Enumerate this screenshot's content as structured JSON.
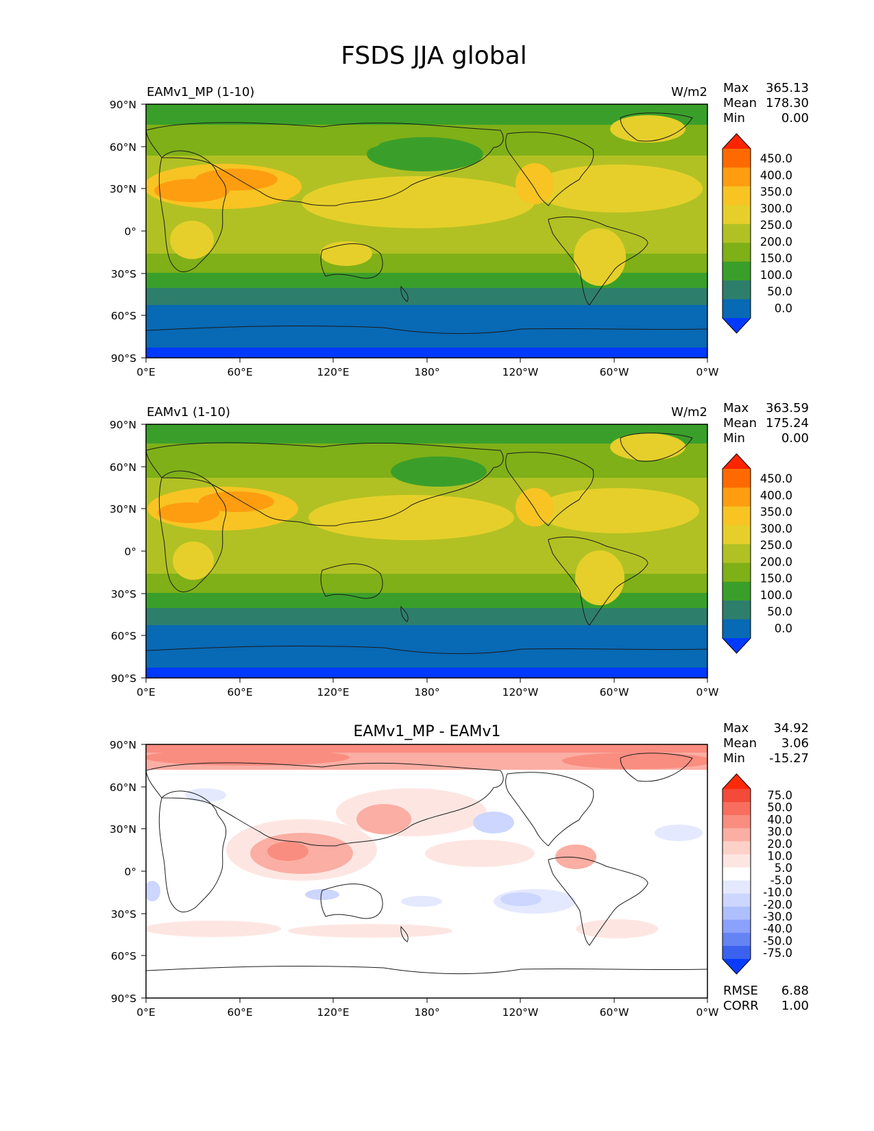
{
  "figure": {
    "title": "FSDS JJA global"
  },
  "axes": {
    "lat_ticks": [
      "90°N",
      "60°N",
      "30°N",
      "0°",
      "30°S",
      "60°S",
      "90°S"
    ],
    "lon_ticks": [
      "0°E",
      "60°E",
      "120°E",
      "180°",
      "120°W",
      "60°W",
      "0°W"
    ]
  },
  "panels": [
    {
      "id": "test",
      "title_left": "EAMv1_MP (1-10)",
      "title_right": "W/m2",
      "stats": [
        {
          "label": "Max",
          "value": "365.13"
        },
        {
          "label": "Mean",
          "value": "178.30"
        },
        {
          "label": "Min",
          "value": "0.00"
        }
      ],
      "colorbar": {
        "ticks": [
          "450.0",
          "400.0",
          "350.0",
          "300.0",
          "250.0",
          "200.0",
          "150.0",
          "100.0",
          "50.0",
          "0.0"
        ],
        "colors": [
          "#ff2400",
          "#ff6a00",
          "#ff9d10",
          "#f7c423",
          "#e6cf2a",
          "#b1c123",
          "#7fb018",
          "#3a9f2a",
          "#2e7e6c",
          "#0869b4",
          "#0039ff"
        ]
      }
    },
    {
      "id": "reference",
      "title_left": "EAMv1 (1-10)",
      "title_right": "W/m2",
      "stats": [
        {
          "label": "Max",
          "value": "363.59"
        },
        {
          "label": "Mean",
          "value": "175.24"
        },
        {
          "label": "Min",
          "value": "0.00"
        }
      ],
      "colorbar": {
        "ticks": [
          "450.0",
          "400.0",
          "350.0",
          "300.0",
          "250.0",
          "200.0",
          "150.0",
          "100.0",
          "50.0",
          "0.0"
        ],
        "colors": [
          "#ff2400",
          "#ff6a00",
          "#ff9d10",
          "#f7c423",
          "#e6cf2a",
          "#b1c123",
          "#7fb018",
          "#3a9f2a",
          "#2e7e6c",
          "#0869b4",
          "#0039ff"
        ]
      }
    },
    {
      "id": "difference",
      "title_center": "EAMv1_MP - EAMv1",
      "stats": [
        {
          "label": "Max",
          "value": "34.92"
        },
        {
          "label": "Mean",
          "value": "3.06"
        },
        {
          "label": "Min",
          "value": "-15.27"
        }
      ],
      "extra_stats": [
        {
          "label": "RMSE",
          "value": "6.88"
        },
        {
          "label": "CORR",
          "value": "1.00"
        }
      ],
      "colorbar": {
        "ticks": [
          "75.0",
          "50.0",
          "40.0",
          "30.0",
          "20.0",
          "10.0",
          "5.0",
          "-5.0",
          "-10.0",
          "-20.0",
          "-30.0",
          "-40.0",
          "-50.0",
          "-75.0"
        ],
        "colors": [
          "#ff2a0a",
          "#f34a3a",
          "#f76e5e",
          "#f98d80",
          "#fbaea3",
          "#fdd0c8",
          "#fde6e2",
          "#ffffff",
          "#e4e9ff",
          "#ccd6ff",
          "#aebfff",
          "#8aa2fb",
          "#6484f4",
          "#3a62ee",
          "#0a3cff"
        ]
      }
    }
  ]
}
